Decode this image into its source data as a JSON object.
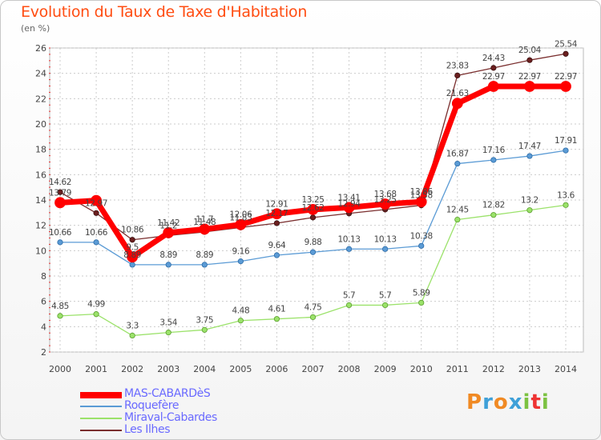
{
  "title": "Evolution du Taux de Taxe d'Habitation",
  "subtitle": "(en %)",
  "colors": {
    "title": "#ff4d12",
    "grid": "#ccc",
    "MAS-CABARDèS": "#ff0000",
    "Roquefère": "#5b9bd5",
    "Miraval-Cabardes": "#9be26a",
    "Les Ilhes": "#7a2e2e"
  },
  "logo": {
    "text": "Proxiti",
    "letters": [
      "P",
      "r",
      "o",
      "x",
      "i",
      "t",
      "i"
    ],
    "letter_colors": [
      "#f08a24",
      "#3fa0d8",
      "#f08a24",
      "#3fa0d8",
      "#7cc242",
      "#e33",
      "#7cc242"
    ]
  },
  "chart_data": {
    "type": "line",
    "title": "Evolution du Taux de Taxe d'Habitation",
    "ylabel": "(en %)",
    "xlabel": "",
    "x": [
      2000,
      2001,
      2002,
      2003,
      2004,
      2005,
      2006,
      2007,
      2008,
      2009,
      2010,
      2011,
      2012,
      2013,
      2014
    ],
    "ylim": [
      2,
      26
    ],
    "yticks": [
      2,
      4,
      6,
      8,
      10,
      12,
      14,
      16,
      18,
      20,
      22,
      24,
      26
    ],
    "grid": true,
    "legend_position": "bottom-left",
    "series": [
      {
        "name": "MAS-CABARDèS",
        "values": [
          13.79,
          13.96,
          9.5,
          11.42,
          11.7,
          12.06,
          12.91,
          13.25,
          13.41,
          13.68,
          13.86,
          21.63,
          22.97,
          22.97,
          22.97
        ],
        "labels": [
          "13.79",
          "",
          "9.5",
          "11.42",
          "11.7",
          "12.06",
          "12.91",
          "13.25",
          "13.41",
          "13.68",
          "13.86",
          "21.63",
          "22.97",
          "22.97",
          "22.97"
        ]
      },
      {
        "name": "Roquefère",
        "values": [
          10.66,
          10.66,
          8.89,
          8.89,
          8.89,
          9.16,
          9.64,
          9.88,
          10.13,
          10.13,
          10.38,
          16.87,
          17.16,
          17.47,
          17.91
        ],
        "labels": [
          "10.66",
          "10.66",
          "8.89",
          "8.89",
          "8.89",
          "9.16",
          "9.64",
          "9.88",
          "10.13",
          "10.13",
          "10.38",
          "16.87",
          "17.16",
          "17.47",
          "17.91"
        ]
      },
      {
        "name": "Miraval-Cabardes",
        "values": [
          4.85,
          4.99,
          3.3,
          3.54,
          3.75,
          4.48,
          4.61,
          4.75,
          5.7,
          5.7,
          5.89,
          12.45,
          12.82,
          13.2,
          13.6
        ],
        "labels": [
          "4.85",
          "4.99",
          "3.3",
          "3.54",
          "3.75",
          "4.48",
          "4.61",
          "4.75",
          "5.7",
          "5.7",
          "5.89",
          "12.45",
          "12.82",
          "13.2",
          "13.6"
        ]
      },
      {
        "name": "Les Ilhes",
        "values": [
          14.62,
          12.97,
          10.86,
          11.2,
          11.48,
          11.83,
          12.17,
          12.62,
          12.94,
          13.25,
          13.58,
          23.83,
          24.43,
          25.04,
          25.54
        ],
        "labels": [
          "14.62",
          "12.97",
          "10.86",
          "11.2",
          "11.48",
          "11.83",
          "12.17",
          "12.62",
          "12.94",
          "13.25",
          "13.58",
          "23.83",
          "24.43",
          "25.04",
          "25.54"
        ]
      }
    ]
  }
}
